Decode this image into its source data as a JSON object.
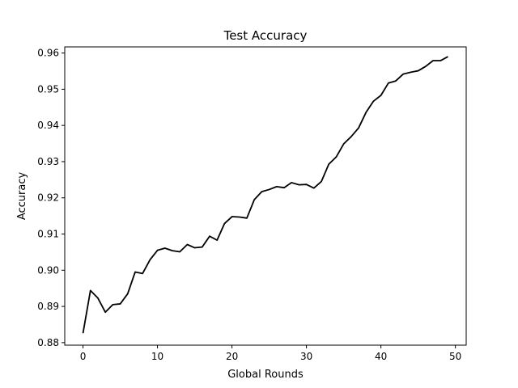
{
  "chart_data": {
    "type": "line",
    "title": "Test Accuracy",
    "xlabel": "Global Rounds",
    "ylabel": "Accuracy",
    "xlim": [
      -2.45,
      51.45
    ],
    "ylim": [
      0.8793,
      0.9617
    ],
    "xticks": [
      0,
      10,
      20,
      30,
      40,
      50
    ],
    "yticks": [
      0.88,
      0.89,
      0.9,
      0.91,
      0.92,
      0.93,
      0.94,
      0.95,
      0.96
    ],
    "ytick_labels": [
      "0.88",
      "0.89",
      "0.90",
      "0.91",
      "0.92",
      "0.93",
      "0.94",
      "0.95",
      "0.96"
    ],
    "grid": false,
    "line_color": "#000000",
    "series": [
      {
        "x": [
          0,
          1,
          2,
          3,
          4,
          5,
          6,
          7,
          8,
          9,
          10,
          11,
          12,
          13,
          14,
          15,
          16,
          17,
          18,
          19,
          20,
          21,
          22,
          23,
          24,
          25,
          26,
          27,
          28,
          29,
          30,
          31,
          32,
          33,
          34,
          35,
          36,
          37,
          38,
          39,
          40,
          41,
          42,
          43,
          44,
          45,
          46,
          47,
          48,
          49
        ],
        "values": [
          0.8826,
          0.8944,
          0.8923,
          0.8884,
          0.8905,
          0.8907,
          0.8935,
          0.8995,
          0.8991,
          0.9029,
          0.9055,
          0.9061,
          0.9054,
          0.9051,
          0.9071,
          0.9062,
          0.9064,
          0.9094,
          0.9083,
          0.9129,
          0.9148,
          0.9147,
          0.9144,
          0.9195,
          0.9217,
          0.9223,
          0.9231,
          0.9228,
          0.9242,
          0.9236,
          0.9237,
          0.9227,
          0.9245,
          0.9293,
          0.9313,
          0.9349,
          0.9369,
          0.9393,
          0.9436,
          0.9467,
          0.9483,
          0.9517,
          0.9523,
          0.9542,
          0.9547,
          0.9551,
          0.9563,
          0.9579,
          0.9579,
          0.959
        ]
      }
    ]
  }
}
